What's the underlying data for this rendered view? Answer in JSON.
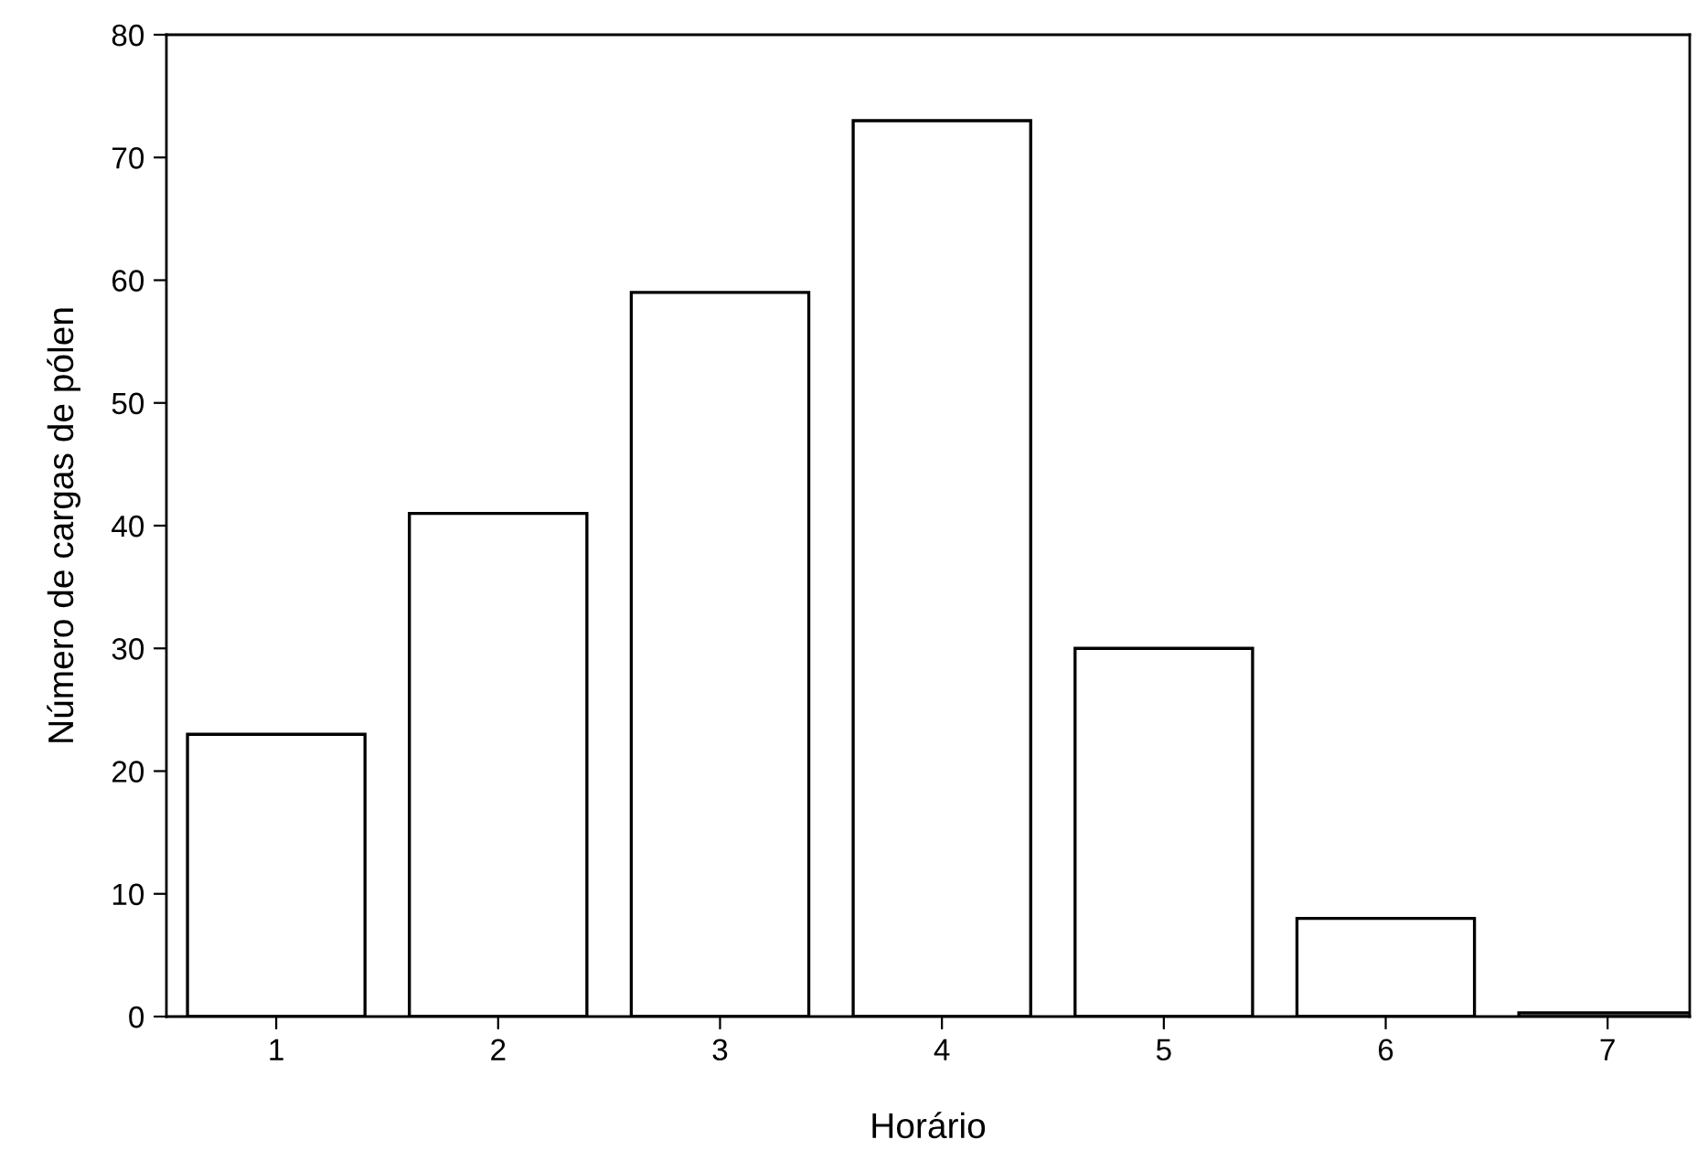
{
  "chart_data": {
    "type": "bar",
    "xlabel": "Horário",
    "ylabel": "Número de cargas de pólen",
    "categories": [
      "1",
      "2",
      "3",
      "4",
      "5",
      "6",
      "7"
    ],
    "values": [
      23,
      41,
      59,
      73,
      30,
      8,
      0.3
    ],
    "color": "#ffffff",
    "ylim": [
      0,
      80
    ],
    "yticks": [
      0,
      10,
      20,
      30,
      40,
      50,
      60,
      70,
      80
    ],
    "grid": false
  }
}
